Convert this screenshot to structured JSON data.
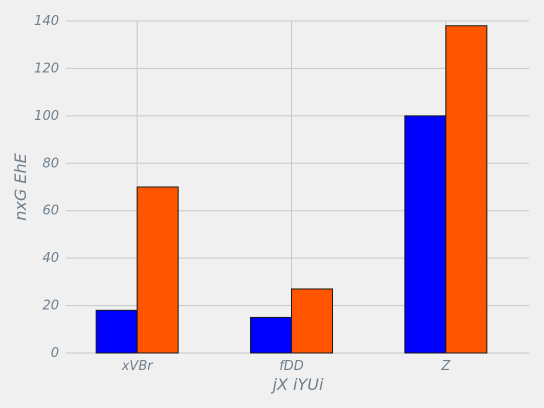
{
  "chart_data": {
    "type": "bar",
    "categories": [
      "xVBr",
      "fDD",
      "Z"
    ],
    "series": [
      {
        "values": [
          18,
          15,
          100
        ],
        "color": "#0000ff"
      },
      {
        "values": [
          70,
          27,
          138
        ],
        "color": "#ff5500"
      }
    ],
    "title": "",
    "xlabel": "jX iYUi",
    "ylabel": "nxG EhE",
    "ylim": [
      0,
      140
    ],
    "yticks": [
      0,
      20,
      40,
      60,
      80,
      100,
      120,
      140
    ],
    "grid": true,
    "legend": "none"
  }
}
